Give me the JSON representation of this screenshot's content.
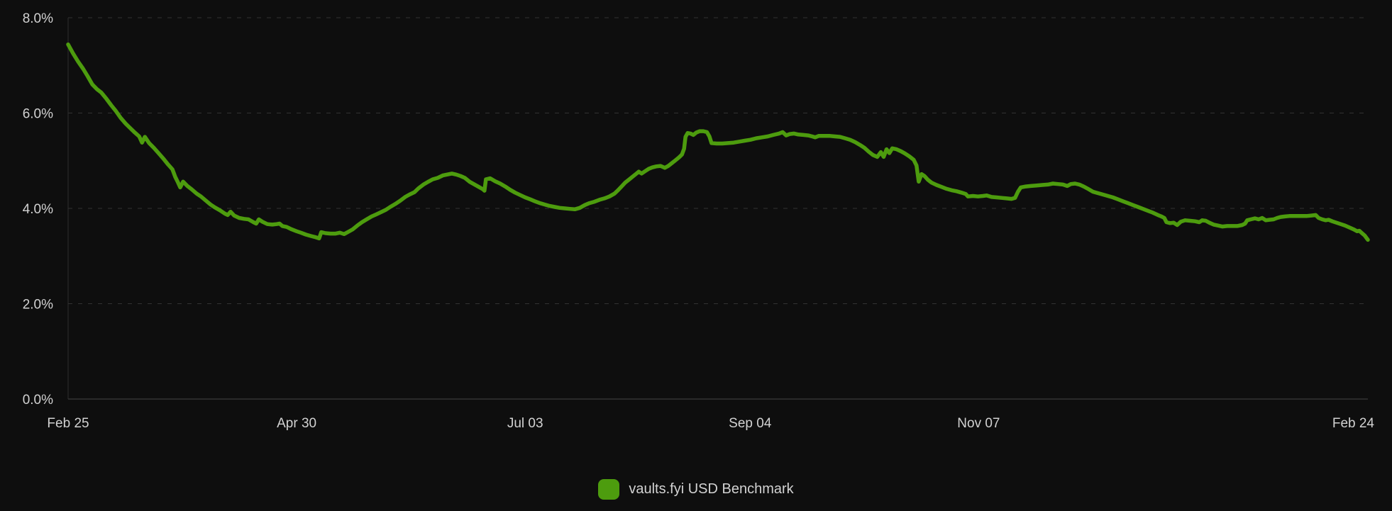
{
  "colors": {
    "background": "#0e0e0e",
    "gridline": "#333333",
    "axis_line": "#2e2e2e",
    "baseline": "#454545",
    "label_text": "#d2d2d2",
    "series_green": "#4d9c0e"
  },
  "legend": {
    "items": [
      {
        "label": "vaults.fyi USD Benchmark",
        "color": "#4d9c0e"
      }
    ]
  },
  "chart_data": {
    "type": "line",
    "title": "",
    "xlabel": "",
    "ylabel": "",
    "grid": "horizontal-dashed",
    "legend_position": "bottom-center",
    "ylim": [
      0,
      8
    ],
    "xlim_days": [
      0,
      364
    ],
    "y_ticks": [
      {
        "value": 0,
        "label": "0.0%"
      },
      {
        "value": 2,
        "label": "2.0%"
      },
      {
        "value": 4,
        "label": "4.0%"
      },
      {
        "value": 6,
        "label": "6.0%"
      },
      {
        "value": 8,
        "label": "8.0%"
      }
    ],
    "x_ticks": [
      {
        "day": 0,
        "label": "Feb 25"
      },
      {
        "day": 64,
        "label": "Apr 30"
      },
      {
        "day": 128,
        "label": "Jul 03"
      },
      {
        "day": 191,
        "label": "Sep 04"
      },
      {
        "day": 255,
        "label": "Nov 07"
      },
      {
        "day": 364,
        "label": "Feb 24"
      }
    ],
    "series": [
      {
        "name": "vaults.fyi USD Benchmark",
        "color": "#4d9c0e",
        "unit": "%",
        "points": [
          [
            0,
            7.44
          ],
          [
            1.4,
            7.25
          ],
          [
            2.8,
            7.08
          ],
          [
            4.2,
            6.93
          ],
          [
            5.4,
            6.78
          ],
          [
            6.8,
            6.6
          ],
          [
            8.1,
            6.5
          ],
          [
            9.3,
            6.43
          ],
          [
            10.7,
            6.3
          ],
          [
            12.1,
            6.16
          ],
          [
            13.3,
            6.05
          ],
          [
            14.7,
            5.9
          ],
          [
            16.1,
            5.78
          ],
          [
            17.3,
            5.69
          ],
          [
            18.7,
            5.59
          ],
          [
            19.9,
            5.51
          ],
          [
            20.7,
            5.38
          ],
          [
            21.5,
            5.5
          ],
          [
            22.7,
            5.37
          ],
          [
            24,
            5.27
          ],
          [
            25.2,
            5.17
          ],
          [
            26.6,
            5.05
          ],
          [
            28,
            4.92
          ],
          [
            29.2,
            4.82
          ],
          [
            30,
            4.66
          ],
          [
            30.8,
            4.54
          ],
          [
            31.4,
            4.44
          ],
          [
            32.2,
            4.56
          ],
          [
            33.4,
            4.47
          ],
          [
            34.6,
            4.4
          ],
          [
            36,
            4.31
          ],
          [
            37.2,
            4.25
          ],
          [
            38.6,
            4.16
          ],
          [
            39.9,
            4.08
          ],
          [
            41.1,
            4.02
          ],
          [
            42.5,
            3.96
          ],
          [
            43.9,
            3.89
          ],
          [
            44.7,
            3.86
          ],
          [
            45.5,
            3.93
          ],
          [
            46.5,
            3.85
          ],
          [
            47.9,
            3.8
          ],
          [
            49.3,
            3.78
          ],
          [
            50.5,
            3.77
          ],
          [
            51.9,
            3.71
          ],
          [
            52.7,
            3.68
          ],
          [
            53.4,
            3.77
          ],
          [
            54.4,
            3.72
          ],
          [
            55.8,
            3.67
          ],
          [
            57.2,
            3.66
          ],
          [
            58.4,
            3.67
          ],
          [
            59.2,
            3.68
          ],
          [
            60,
            3.63
          ],
          [
            61.2,
            3.61
          ],
          [
            62.6,
            3.56
          ],
          [
            64,
            3.52
          ],
          [
            65.2,
            3.49
          ],
          [
            66.6,
            3.45
          ],
          [
            68,
            3.42
          ],
          [
            69.1,
            3.4
          ],
          [
            70.3,
            3.37
          ],
          [
            70.9,
            3.5
          ],
          [
            72.1,
            3.48
          ],
          [
            73.5,
            3.47
          ],
          [
            74.9,
            3.47
          ],
          [
            76.1,
            3.49
          ],
          [
            77.3,
            3.46
          ],
          [
            78.5,
            3.51
          ],
          [
            79.7,
            3.56
          ],
          [
            81,
            3.64
          ],
          [
            82.3,
            3.71
          ],
          [
            83.6,
            3.77
          ],
          [
            85,
            3.83
          ],
          [
            86.2,
            3.87
          ],
          [
            87.6,
            3.92
          ],
          [
            89,
            3.97
          ],
          [
            90.2,
            4.03
          ],
          [
            91.6,
            4.09
          ],
          [
            93,
            4.16
          ],
          [
            94.4,
            4.24
          ],
          [
            95.6,
            4.29
          ],
          [
            97,
            4.34
          ],
          [
            98.1,
            4.42
          ],
          [
            99.5,
            4.5
          ],
          [
            100.9,
            4.56
          ],
          [
            102.1,
            4.61
          ],
          [
            103.5,
            4.64
          ],
          [
            104.9,
            4.69
          ],
          [
            106.1,
            4.71
          ],
          [
            107.5,
            4.73
          ],
          [
            108.7,
            4.71
          ],
          [
            109.9,
            4.68
          ],
          [
            111.1,
            4.64
          ],
          [
            112.4,
            4.56
          ],
          [
            113.6,
            4.51
          ],
          [
            115,
            4.45
          ],
          [
            116.2,
            4.4
          ],
          [
            116.6,
            4.37
          ],
          [
            117,
            4.61
          ],
          [
            118.2,
            4.63
          ],
          [
            119.6,
            4.57
          ],
          [
            121,
            4.52
          ],
          [
            122.4,
            4.46
          ],
          [
            123.8,
            4.39
          ],
          [
            125.2,
            4.33
          ],
          [
            126.6,
            4.28
          ],
          [
            128,
            4.23
          ],
          [
            129.4,
            4.19
          ],
          [
            130.7,
            4.15
          ],
          [
            132.1,
            4.11
          ],
          [
            133.5,
            4.08
          ],
          [
            134.9,
            4.05
          ],
          [
            136.3,
            4.03
          ],
          [
            137.7,
            4.01
          ],
          [
            139.1,
            4.0
          ],
          [
            140.5,
            3.99
          ],
          [
            141.9,
            3.98
          ],
          [
            143.3,
            4.01
          ],
          [
            144.7,
            4.07
          ],
          [
            146,
            4.11
          ],
          [
            147.4,
            4.14
          ],
          [
            148.8,
            4.18
          ],
          [
            150.2,
            4.21
          ],
          [
            151.6,
            4.25
          ],
          [
            153,
            4.31
          ],
          [
            154,
            4.38
          ],
          [
            155,
            4.46
          ],
          [
            156,
            4.54
          ],
          [
            157,
            4.6
          ],
          [
            158,
            4.66
          ],
          [
            159,
            4.72
          ],
          [
            159.8,
            4.77
          ],
          [
            160.6,
            4.73
          ],
          [
            161.6,
            4.78
          ],
          [
            162.6,
            4.83
          ],
          [
            163.6,
            4.86
          ],
          [
            164.7,
            4.88
          ],
          [
            165.9,
            4.89
          ],
          [
            167.1,
            4.85
          ],
          [
            168.1,
            4.89
          ],
          [
            169.1,
            4.95
          ],
          [
            170.1,
            5.01
          ],
          [
            171.1,
            5.07
          ],
          [
            171.9,
            5.13
          ],
          [
            172.5,
            5.25
          ],
          [
            172.9,
            5.5
          ],
          [
            173.5,
            5.58
          ],
          [
            174.3,
            5.57
          ],
          [
            175.1,
            5.54
          ],
          [
            175.9,
            5.59
          ],
          [
            176.9,
            5.62
          ],
          [
            177.9,
            5.62
          ],
          [
            178.9,
            5.6
          ],
          [
            179.6,
            5.51
          ],
          [
            180.2,
            5.37
          ],
          [
            181.6,
            5.36
          ],
          [
            183.2,
            5.36
          ],
          [
            184.8,
            5.37
          ],
          [
            186.4,
            5.38
          ],
          [
            188,
            5.4
          ],
          [
            189.5,
            5.42
          ],
          [
            191.1,
            5.44
          ],
          [
            192.7,
            5.47
          ],
          [
            194.3,
            5.49
          ],
          [
            195.9,
            5.51
          ],
          [
            197.5,
            5.54
          ],
          [
            199.1,
            5.57
          ],
          [
            200.1,
            5.6
          ],
          [
            201.1,
            5.53
          ],
          [
            202.1,
            5.56
          ],
          [
            203.3,
            5.57
          ],
          [
            204.5,
            5.55
          ],
          [
            205.9,
            5.54
          ],
          [
            207.3,
            5.53
          ],
          [
            208.4,
            5.51
          ],
          [
            209.2,
            5.49
          ],
          [
            210.2,
            5.52
          ],
          [
            211.8,
            5.52
          ],
          [
            213.4,
            5.52
          ],
          [
            214.8,
            5.51
          ],
          [
            216.2,
            5.5
          ],
          [
            217.6,
            5.47
          ],
          [
            219,
            5.44
          ],
          [
            220.4,
            5.39
          ],
          [
            221.8,
            5.33
          ],
          [
            223,
            5.27
          ],
          [
            224.2,
            5.19
          ],
          [
            225.4,
            5.12
          ],
          [
            226.6,
            5.08
          ],
          [
            227.6,
            5.18
          ],
          [
            228.4,
            5.08
          ],
          [
            229.2,
            5.24
          ],
          [
            230,
            5.16
          ],
          [
            230.8,
            5.26
          ],
          [
            232,
            5.24
          ],
          [
            233.2,
            5.2
          ],
          [
            234.4,
            5.15
          ],
          [
            235.6,
            5.09
          ],
          [
            236.8,
            5.02
          ],
          [
            237.6,
            4.9
          ],
          [
            238.2,
            4.56
          ],
          [
            239,
            4.72
          ],
          [
            239.8,
            4.68
          ],
          [
            240.8,
            4.6
          ],
          [
            241.8,
            4.54
          ],
          [
            243.2,
            4.49
          ],
          [
            244.6,
            4.45
          ],
          [
            246,
            4.41
          ],
          [
            247.4,
            4.38
          ],
          [
            248.8,
            4.36
          ],
          [
            250.2,
            4.33
          ],
          [
            251.4,
            4.3
          ],
          [
            252,
            4.25
          ],
          [
            253.4,
            4.26
          ],
          [
            254.8,
            4.25
          ],
          [
            256.2,
            4.26
          ],
          [
            257.2,
            4.27
          ],
          [
            258.6,
            4.24
          ],
          [
            260,
            4.23
          ],
          [
            261.4,
            4.22
          ],
          [
            262.8,
            4.21
          ],
          [
            264.2,
            4.2
          ],
          [
            265.2,
            4.22
          ],
          [
            266,
            4.35
          ],
          [
            266.8,
            4.44
          ],
          [
            268.2,
            4.46
          ],
          [
            269.6,
            4.47
          ],
          [
            271.2,
            4.48
          ],
          [
            272.8,
            4.49
          ],
          [
            274.4,
            4.5
          ],
          [
            275.8,
            4.52
          ],
          [
            277.2,
            4.51
          ],
          [
            278.6,
            4.5
          ],
          [
            279.8,
            4.47
          ],
          [
            280.8,
            4.51
          ],
          [
            282,
            4.52
          ],
          [
            283.2,
            4.5
          ],
          [
            284.4,
            4.46
          ],
          [
            285.6,
            4.41
          ],
          [
            287,
            4.35
          ],
          [
            288.4,
            4.32
          ],
          [
            289.8,
            4.29
          ],
          [
            291.2,
            4.26
          ],
          [
            292.6,
            4.23
          ],
          [
            294,
            4.19
          ],
          [
            295.4,
            4.15
          ],
          [
            296.8,
            4.11
          ],
          [
            298.2,
            4.07
          ],
          [
            299.6,
            4.03
          ],
          [
            301,
            3.99
          ],
          [
            302.4,
            3.95
          ],
          [
            303.8,
            3.91
          ],
          [
            305.2,
            3.86
          ],
          [
            306.2,
            3.83
          ],
          [
            307,
            3.8
          ],
          [
            307.6,
            3.71
          ],
          [
            308.6,
            3.69
          ],
          [
            309.6,
            3.7
          ],
          [
            310.6,
            3.65
          ],
          [
            311.6,
            3.72
          ],
          [
            312.8,
            3.75
          ],
          [
            314.2,
            3.74
          ],
          [
            315.6,
            3.73
          ],
          [
            316.8,
            3.71
          ],
          [
            317.6,
            3.75
          ],
          [
            318.6,
            3.74
          ],
          [
            319.6,
            3.7
          ],
          [
            320.8,
            3.66
          ],
          [
            322,
            3.64
          ],
          [
            323.2,
            3.62
          ],
          [
            324.6,
            3.63
          ],
          [
            326,
            3.63
          ],
          [
            327.4,
            3.63
          ],
          [
            328.8,
            3.65
          ],
          [
            329.6,
            3.68
          ],
          [
            330.2,
            3.75
          ],
          [
            331.2,
            3.77
          ],
          [
            332.4,
            3.79
          ],
          [
            333.4,
            3.77
          ],
          [
            334.4,
            3.8
          ],
          [
            335.4,
            3.75
          ],
          [
            336.4,
            3.76
          ],
          [
            337.6,
            3.77
          ],
          [
            338.6,
            3.8
          ],
          [
            339.6,
            3.82
          ],
          [
            340.8,
            3.83
          ],
          [
            342,
            3.84
          ],
          [
            343.6,
            3.84
          ],
          [
            345.2,
            3.84
          ],
          [
            346.8,
            3.84
          ],
          [
            348.2,
            3.85
          ],
          [
            349.4,
            3.86
          ],
          [
            350.2,
            3.8
          ],
          [
            351.2,
            3.77
          ],
          [
            352.2,
            3.75
          ],
          [
            353,
            3.76
          ],
          [
            354,
            3.73
          ],
          [
            355.2,
            3.7
          ],
          [
            356.4,
            3.67
          ],
          [
            357.6,
            3.64
          ],
          [
            358.8,
            3.6
          ],
          [
            360,
            3.56
          ],
          [
            361,
            3.52
          ],
          [
            361.6,
            3.53
          ],
          [
            362.2,
            3.49
          ],
          [
            363.1,
            3.43
          ],
          [
            363.7,
            3.37
          ],
          [
            364,
            3.34
          ]
        ]
      }
    ]
  }
}
